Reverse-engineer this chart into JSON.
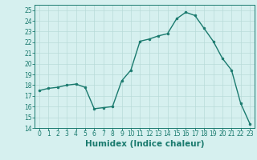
{
  "x": [
    0,
    1,
    2,
    3,
    4,
    5,
    6,
    7,
    8,
    9,
    10,
    11,
    12,
    13,
    14,
    15,
    16,
    17,
    18,
    19,
    20,
    21,
    22,
    23
  ],
  "y": [
    17.5,
    17.7,
    17.8,
    18.0,
    18.1,
    17.8,
    15.8,
    15.9,
    16.0,
    18.4,
    19.4,
    22.1,
    22.3,
    22.6,
    22.8,
    24.2,
    24.8,
    24.5,
    23.3,
    22.1,
    20.5,
    19.4,
    16.3,
    14.4
  ],
  "line_color": "#1a7a6e",
  "marker": "o",
  "marker_size": 2,
  "line_width": 1.0,
  "bg_color": "#d6f0ef",
  "grid_color": "#b8dbd9",
  "xlabel": "Humidex (Indice chaleur)",
  "ylabel": "",
  "ylim": [
    14,
    25.5
  ],
  "xlim": [
    -0.5,
    23.5
  ],
  "yticks": [
    14,
    15,
    16,
    17,
    18,
    19,
    20,
    21,
    22,
    23,
    24,
    25
  ],
  "xticks": [
    0,
    1,
    2,
    3,
    4,
    5,
    6,
    7,
    8,
    9,
    10,
    11,
    12,
    13,
    14,
    15,
    16,
    17,
    18,
    19,
    20,
    21,
    22,
    23
  ],
  "tick_color": "#1a7a6e",
  "label_color": "#1a7a6e",
  "tick_fontsize": 5.5,
  "xlabel_fontsize": 7.5
}
